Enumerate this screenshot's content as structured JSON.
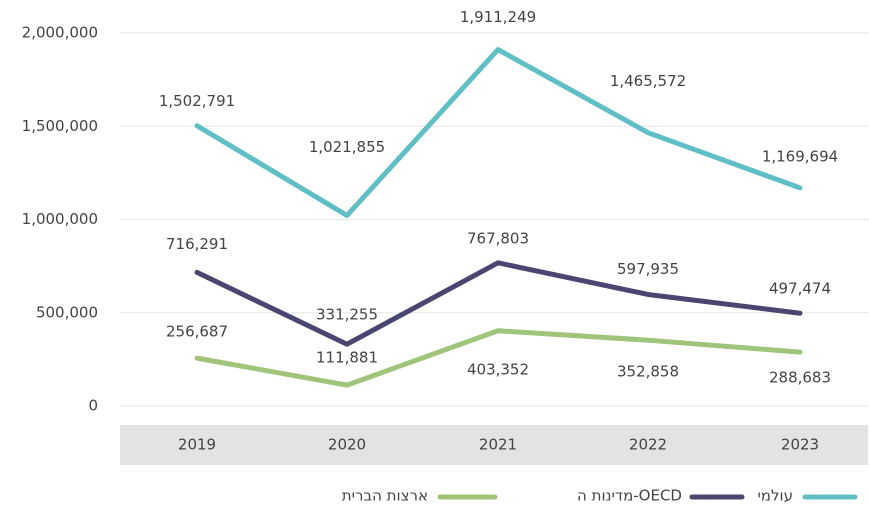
{
  "chart_data": {
    "type": "line",
    "categories": [
      "2019",
      "2020",
      "2021",
      "2022",
      "2023"
    ],
    "series": [
      {
        "name": "עולמי",
        "color": "#5fbfc4",
        "values": [
          1502791,
          1021855,
          1911249,
          1465572,
          1169694
        ],
        "value_labels": [
          "1,502,791",
          "1,021,855",
          "1,911,249",
          "1,465,572",
          "1,169,694"
        ]
      },
      {
        "name": "מדינות ה-OECD",
        "color": "#4a4672",
        "values": [
          716291,
          331255,
          767803,
          597935,
          497474
        ],
        "value_labels": [
          "716,291",
          "331,255",
          "767,803",
          "597,935",
          "497,474"
        ]
      },
      {
        "name": "ארצות הברית",
        "color": "#9fc47a",
        "values": [
          256687,
          111881,
          403352,
          352858,
          288683
        ],
        "value_labels": [
          "256,687",
          "111,881",
          "403,352",
          "352,858",
          "288,683"
        ]
      }
    ],
    "ylim": [
      0,
      2000000
    ],
    "yticks": [
      {
        "value": 0,
        "label": "0"
      },
      {
        "value": 500000,
        "label": "500,000"
      },
      {
        "value": 1000000,
        "label": "1,000,000"
      },
      {
        "value": 1500000,
        "label": "1,500,000"
      },
      {
        "value": 2000000,
        "label": "2,000,000"
      }
    ],
    "grid": true
  }
}
